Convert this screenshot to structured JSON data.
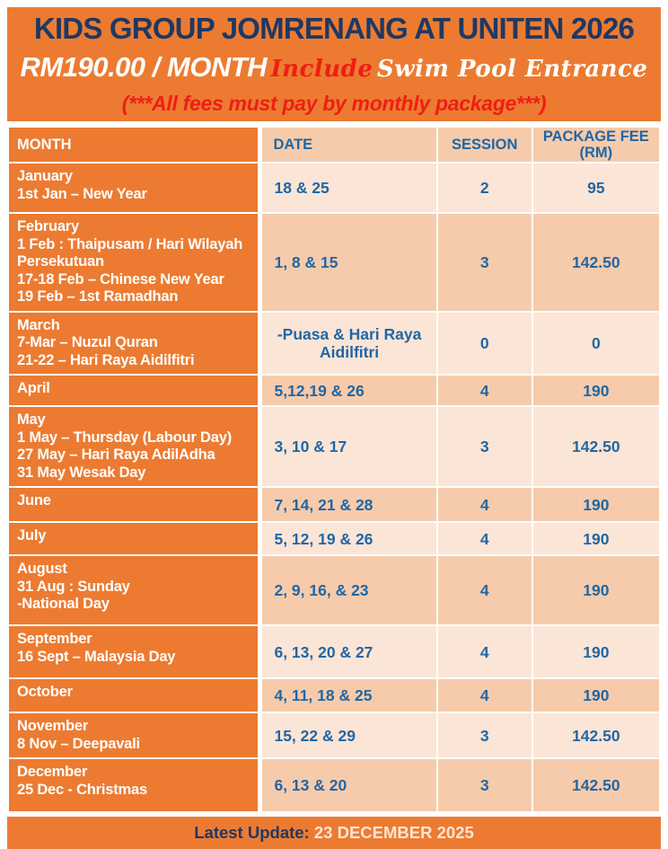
{
  "header": {
    "title": "KIDS GROUP JOMRENANG AT UNITEN 2026",
    "price": "RM190.00 / MONTH",
    "include": "Include",
    "entrance": "Swim Pool Entrance",
    "fees_note": "(***All fees must pay by monthly package***)"
  },
  "colors": {
    "orange": "#EC7B31",
    "peach_light": "#FBE5D6",
    "peach_dark": "#F6CBAB",
    "navy": "#1F3864",
    "blue": "#2166A5",
    "red": "#EF1E14",
    "white": "#FFFFFF"
  },
  "table": {
    "headers": {
      "month": "MONTH",
      "date": "DATE",
      "session": "SESSION",
      "fee_line1": "PACKAGE FEE",
      "fee_line2": "(RM)"
    },
    "rows": [
      {
        "month_lines": [
          "January",
          "1st Jan – New Year"
        ],
        "date_lines": [
          "18 & 25"
        ],
        "date_align": "left",
        "session": "2",
        "fee": "95",
        "shade": "light"
      },
      {
        "month_lines": [
          "February",
          "1 Feb : Thaipusam / Hari Wilayah Persekutuan",
          "17-18 Feb – Chinese New Year",
          "19 Feb – 1st Ramadhan"
        ],
        "date_lines": [
          "1, 8 & 15"
        ],
        "date_align": "left",
        "session": "3",
        "fee": "142.50",
        "shade": "dark"
      },
      {
        "month_lines": [
          "March",
          "7-Mar – Nuzul Quran",
          "21-22 – Hari Raya Aidilfitri"
        ],
        "date_lines": [
          "-Puasa & Hari Raya",
          "Aidilfitri"
        ],
        "date_align": "center",
        "session": "0",
        "fee": "0",
        "shade": "light"
      },
      {
        "month_lines": [
          "April"
        ],
        "date_lines": [
          "5,12,19 & 26"
        ],
        "date_align": "left",
        "session": "4",
        "fee": "190",
        "shade": "dark"
      },
      {
        "month_lines": [
          "May",
          "1 May – Thursday (Labour Day)",
          "27 May – Hari Raya AdilAdha",
          "31 May Wesak Day"
        ],
        "date_lines": [
          "3, 10 & 17"
        ],
        "date_align": "left",
        "session": "3",
        "fee": "142.50",
        "shade": "light"
      },
      {
        "month_lines": [
          "June"
        ],
        "date_lines": [
          "7, 14, 21 & 28"
        ],
        "date_align": "left",
        "session": "4",
        "fee": "190",
        "shade": "dark"
      },
      {
        "month_lines": [
          "July"
        ],
        "date_lines": [
          "5, 12, 19 & 26"
        ],
        "date_align": "left",
        "session": "4",
        "fee": "190",
        "shade": "light"
      },
      {
        "month_lines": [
          "August",
          "31 Aug : Sunday",
          "-National Day"
        ],
        "date_lines": [
          "2, 9, 16, & 23"
        ],
        "date_align": "left",
        "session": "4",
        "fee": "190",
        "shade": "dark"
      },
      {
        "month_lines": [
          "September",
          "16 Sept – Malaysia Day"
        ],
        "date_lines": [
          "6, 13, 20 & 27"
        ],
        "date_align": "left",
        "session": "4",
        "fee": "190",
        "shade": "light"
      },
      {
        "month_lines": [
          "October"
        ],
        "date_lines": [
          "4, 11, 18 & 25"
        ],
        "date_align": "left",
        "session": "4",
        "fee": "190",
        "shade": "dark"
      },
      {
        "month_lines": [
          "November",
          "8 Nov – Deepavali"
        ],
        "date_lines": [
          "15, 22 & 29"
        ],
        "date_align": "left",
        "session": "3",
        "fee": "142.50",
        "shade": "light"
      },
      {
        "month_lines": [
          "December",
          "25 Dec - Christmas"
        ],
        "date_lines": [
          "6, 13 & 20"
        ],
        "date_align": "left",
        "session": "3",
        "fee": "142.50",
        "shade": "dark"
      }
    ]
  },
  "footer": {
    "label": "Latest Update:",
    "value": "23 DECEMBER 2025"
  }
}
